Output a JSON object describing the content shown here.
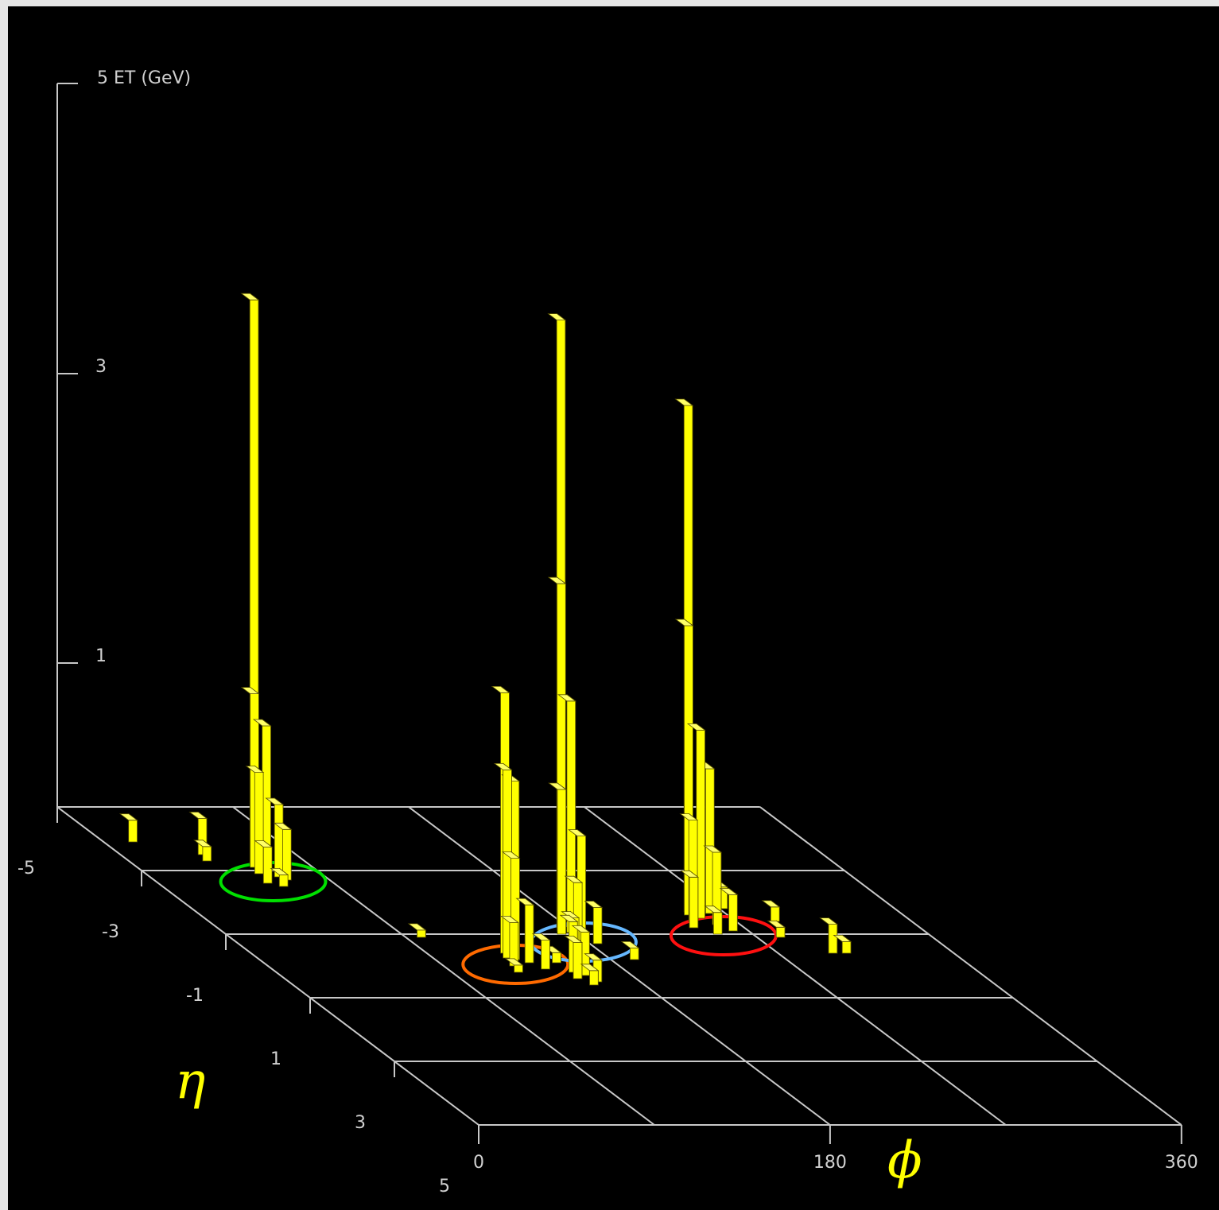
{
  "chart_data": {
    "type": "lego-plot-3d",
    "colors": {
      "background": "#000000",
      "bars": "#ffff00",
      "axes": "#c8c8c8",
      "axis_symbols": "#ffff00"
    },
    "z_axis": {
      "label": "5 ET (GeV)",
      "ticks": [
        "3",
        "1"
      ],
      "range": [
        0,
        5
      ]
    },
    "eta_axis": {
      "symbol": "η",
      "ticks": [
        "-5",
        "-3",
        "-1",
        "1",
        "3",
        "5"
      ],
      "range": [
        -5,
        5
      ]
    },
    "phi_axis": {
      "symbol": "ϕ",
      "ticks": [
        "0",
        "180",
        "360"
      ],
      "range": [
        0,
        360
      ]
    },
    "towers": [
      {
        "eta": -3.3,
        "phi": 62,
        "et": 3.9
      },
      {
        "eta": -3.2,
        "phi": 60,
        "et": 1.2
      },
      {
        "eta": -3.1,
        "phi": 64,
        "et": 1.0
      },
      {
        "eta": -3.0,
        "phi": 58,
        "et": 0.7
      },
      {
        "eta": -2.9,
        "phi": 66,
        "et": 0.5
      },
      {
        "eta": -2.8,
        "phi": 68,
        "et": 0.35
      },
      {
        "eta": -2.7,
        "phi": 56,
        "et": 0.25
      },
      {
        "eta": -4.0,
        "phi": 15,
        "et": 0.15
      },
      {
        "eta": -3.6,
        "phi": 42,
        "et": 0.25
      },
      {
        "eta": -3.4,
        "phi": 40,
        "et": 0.1
      },
      {
        "eta": -2.6,
        "phi": 62,
        "et": 0.08
      },
      {
        "eta": -1.0,
        "phi": 98,
        "et": 0.05
      },
      {
        "eta": -1.3,
        "phi": 176,
        "et": 4.2
      },
      {
        "eta": -1.2,
        "phi": 174,
        "et": 2.4
      },
      {
        "eta": -1.15,
        "phi": 178,
        "et": 1.6
      },
      {
        "eta": -1.1,
        "phi": 172,
        "et": 1.0
      },
      {
        "eta": -1.0,
        "phi": 180,
        "et": 0.7
      },
      {
        "eta": -0.9,
        "phi": 176,
        "et": 0.4
      },
      {
        "eta": -0.8,
        "phi": 184,
        "et": 0.25
      },
      {
        "eta": -0.7,
        "phi": 170,
        "et": 0.2
      },
      {
        "eta": -0.3,
        "phi": 192,
        "et": 0.08
      },
      {
        "eta": -0.2,
        "phi": 150,
        "et": 0.07
      },
      {
        "eta": -0.5,
        "phi": 130,
        "et": 1.8
      },
      {
        "eta": -0.45,
        "phi": 134,
        "et": 1.2
      },
      {
        "eta": -0.35,
        "phi": 128,
        "et": 1.3
      },
      {
        "eta": -0.3,
        "phi": 131,
        "et": 0.7
      },
      {
        "eta": -0.2,
        "phi": 136,
        "et": 0.4
      },
      {
        "eta": -0.1,
        "phi": 126,
        "et": 0.3
      },
      {
        "eta": 0.0,
        "phi": 140,
        "et": 0.2
      },
      {
        "eta": 0.1,
        "phi": 124,
        "et": 0.05
      },
      {
        "eta": 0.1,
        "phi": 152,
        "et": 0.35
      },
      {
        "eta": 0.2,
        "phi": 156,
        "et": 0.3
      },
      {
        "eta": 0.3,
        "phi": 150,
        "et": 0.25
      },
      {
        "eta": 0.4,
        "phi": 158,
        "et": 0.15
      },
      {
        "eta": 0.5,
        "phi": 154,
        "et": 0.1
      },
      {
        "eta": -1.8,
        "phi": 252,
        "et": 3.5
      },
      {
        "eta": -1.7,
        "phi": 250,
        "et": 2.0
      },
      {
        "eta": -1.6,
        "phi": 254,
        "et": 1.3
      },
      {
        "eta": -1.75,
        "phi": 262,
        "et": 1.0
      },
      {
        "eta": -1.5,
        "phi": 248,
        "et": 0.7
      },
      {
        "eta": -1.4,
        "phi": 258,
        "et": 0.5
      },
      {
        "eta": -1.3,
        "phi": 244,
        "et": 0.35
      },
      {
        "eta": -1.2,
        "phi": 262,
        "et": 0.25
      },
      {
        "eta": -1.1,
        "phi": 252,
        "et": 0.15
      },
      {
        "eta": -2.0,
        "phi": 265,
        "et": 0.5
      },
      {
        "eta": -2.1,
        "phi": 270,
        "et": 0.3
      },
      {
        "eta": -1.9,
        "phi": 272,
        "et": 0.15
      },
      {
        "eta": -1.5,
        "phi": 290,
        "et": 0.1
      },
      {
        "eta": -1.0,
        "phi": 282,
        "et": 0.07
      },
      {
        "eta": -0.5,
        "phi": 298,
        "et": 0.2
      },
      {
        "eta": -0.5,
        "phi": 305,
        "et": 0.08
      }
    ],
    "jet_rings": [
      {
        "eta": -2.9,
        "phi": 62,
        "color": "#00e000"
      },
      {
        "eta": -0.3,
        "phi": 130,
        "color": "#ff6a00"
      },
      {
        "eta": -1.0,
        "phi": 180,
        "color": "#66b8ff"
      },
      {
        "eta": -1.2,
        "phi": 256,
        "color": "#ff1010"
      }
    ]
  }
}
